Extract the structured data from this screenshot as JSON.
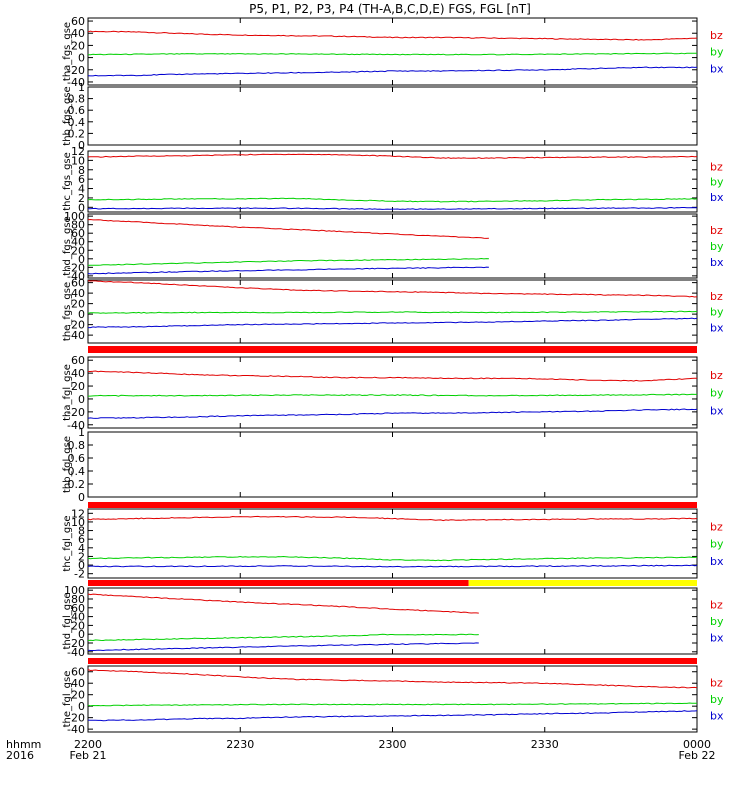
{
  "title": "P5, P1, P2, P3, P4 (TH-A,B,C,D,E) FGS, FGL [nT]",
  "colors": {
    "bz": "#e00000",
    "by": "#00d000",
    "bx": "#0000d0",
    "flag_red": "#ff0000",
    "flag_yellow": "#ffff00"
  },
  "time_axis": {
    "row_label_1": "hhmm",
    "row_label_2": "2016",
    "ticks": [
      {
        "t": 0,
        "label": "2200",
        "sub": "Feb 21"
      },
      {
        "t": 30,
        "label": "2230",
        "sub": ""
      },
      {
        "t": 60,
        "label": "2300",
        "sub": ""
      },
      {
        "t": 90,
        "label": "2330",
        "sub": ""
      },
      {
        "t": 120,
        "label": "0000",
        "sub": "Feb 22"
      }
    ],
    "range_minutes": [
      0,
      120
    ]
  },
  "chart_data": [
    {
      "type": "line",
      "ylabel": "tha_fgs_gse",
      "ylim": [
        -45,
        65
      ],
      "ticks": [
        -40,
        -20,
        0,
        20,
        40,
        60
      ],
      "legend": [
        "bz",
        "by",
        "bx"
      ],
      "series": [
        {
          "name": "bz",
          "x": [
            0,
            10,
            20,
            30,
            40,
            50,
            60,
            70,
            80,
            90,
            100,
            110,
            120
          ],
          "values": [
            43,
            42,
            39,
            37,
            36,
            35,
            33,
            33,
            32,
            31,
            30,
            29,
            32
          ]
        },
        {
          "name": "by",
          "x": [
            0,
            20,
            40,
            60,
            80,
            100,
            120
          ],
          "values": [
            5,
            6,
            6,
            5,
            5,
            6,
            7
          ]
        },
        {
          "name": "bx",
          "x": [
            0,
            10,
            20,
            30,
            40,
            50,
            60,
            70,
            80,
            90,
            100,
            110,
            120
          ],
          "values": [
            -30,
            -29,
            -27,
            -26,
            -25,
            -24,
            -22,
            -22,
            -21,
            -20,
            -18,
            -16,
            -16
          ]
        }
      ]
    },
    {
      "type": "line",
      "ylabel": "thb_fgs_gse",
      "ylim": [
        0,
        1
      ],
      "ticks": [
        0.0,
        0.2,
        0.4,
        0.6,
        0.8,
        1.0
      ],
      "legend": [],
      "series": []
    },
    {
      "type": "line",
      "ylabel": "thc_fgs_gse",
      "ylim": [
        -1,
        12
      ],
      "ticks": [
        0,
        2,
        4,
        6,
        8,
        10,
        12
      ],
      "legend": [
        "bz",
        "by",
        "bx"
      ],
      "series": [
        {
          "name": "bz",
          "x": [
            0,
            10,
            20,
            30,
            40,
            50,
            60,
            70,
            80,
            90,
            100,
            110,
            120
          ],
          "values": [
            10.7,
            10.9,
            11.0,
            11.2,
            11.3,
            11.2,
            10.9,
            10.5,
            10.5,
            10.6,
            10.7,
            10.7,
            10.8
          ]
        },
        {
          "name": "by",
          "x": [
            0,
            10,
            20,
            30,
            40,
            50,
            60,
            70,
            80,
            90,
            100,
            110,
            120
          ],
          "values": [
            1.6,
            1.7,
            1.8,
            1.8,
            1.9,
            1.6,
            1.3,
            1.2,
            1.3,
            1.4,
            1.6,
            1.7,
            1.8
          ]
        },
        {
          "name": "bx",
          "x": [
            0,
            20,
            40,
            60,
            80,
            100,
            120
          ],
          "values": [
            -0.3,
            -0.2,
            -0.2,
            -0.4,
            -0.3,
            -0.2,
            -0.1
          ]
        }
      ]
    },
    {
      "type": "line",
      "ylabel": "thd_fgs_gse",
      "ylim": [
        -45,
        105
      ],
      "ticks": [
        -40,
        -20,
        0,
        20,
        40,
        60,
        80,
        100
      ],
      "legend": [
        "bz",
        "by",
        "bx"
      ],
      "series": [
        {
          "name": "bz",
          "x": [
            0,
            10,
            20,
            30,
            40,
            50,
            60,
            70,
            79
          ],
          "values": [
            92,
            86,
            80,
            74,
            69,
            64,
            58,
            53,
            48
          ]
        },
        {
          "name": "by",
          "x": [
            0,
            20,
            40,
            60,
            79
          ],
          "values": [
            -15,
            -10,
            -5,
            -2,
            0
          ]
        },
        {
          "name": "bx",
          "x": [
            0,
            20,
            40,
            60,
            79
          ],
          "values": [
            -35,
            -30,
            -26,
            -22,
            -20
          ]
        }
      ]
    },
    {
      "type": "line",
      "ylabel": "the_fgs_gse",
      "ylim": [
        -55,
        65
      ],
      "ticks": [
        -40,
        -20,
        0,
        20,
        40,
        60
      ],
      "legend": [
        "bz",
        "by",
        "bx"
      ],
      "series": [
        {
          "name": "bz",
          "x": [
            0,
            10,
            20,
            30,
            40,
            50,
            60,
            70,
            80,
            90,
            100,
            110,
            120
          ],
          "values": [
            63,
            60,
            55,
            50,
            46,
            44,
            43,
            41,
            39,
            38,
            37,
            36,
            33
          ]
        },
        {
          "name": "by",
          "x": [
            0,
            20,
            40,
            60,
            80,
            100,
            120
          ],
          "values": [
            2,
            3,
            3,
            4,
            3,
            4,
            5
          ]
        },
        {
          "name": "bx",
          "x": [
            0,
            10,
            20,
            30,
            40,
            50,
            60,
            70,
            80,
            90,
            100,
            110,
            120
          ],
          "values": [
            -25,
            -24,
            -22,
            -20,
            -19,
            -18,
            -17,
            -16,
            -15,
            -13,
            -12,
            -10,
            -8
          ]
        }
      ]
    },
    {
      "type": "line",
      "ylabel": "tha_fgl_gse",
      "ylim": [
        -45,
        65
      ],
      "ticks": [
        -40,
        -20,
        0,
        20,
        40,
        60
      ],
      "legend": [
        "bz",
        "by",
        "bx"
      ],
      "series": [
        {
          "name": "bz",
          "x": [
            0,
            10,
            20,
            30,
            40,
            50,
            60,
            70,
            80,
            90,
            100,
            110,
            120
          ],
          "values": [
            43,
            41,
            38,
            36,
            35,
            33,
            33,
            32,
            32,
            31,
            29,
            28,
            32
          ]
        },
        {
          "name": "by",
          "x": [
            0,
            20,
            40,
            60,
            80,
            100,
            120
          ],
          "values": [
            5,
            5,
            6,
            6,
            5,
            6,
            7
          ]
        },
        {
          "name": "bx",
          "x": [
            0,
            10,
            20,
            30,
            40,
            50,
            60,
            70,
            80,
            90,
            100,
            110,
            120
          ],
          "values": [
            -30,
            -29,
            -28,
            -26,
            -25,
            -24,
            -22,
            -22,
            -21,
            -20,
            -19,
            -17,
            -16
          ]
        }
      ]
    },
    {
      "type": "line",
      "ylabel": "thb_fgl_gse",
      "ylim": [
        0,
        1
      ],
      "ticks": [
        0.0,
        0.2,
        0.4,
        0.6,
        0.8,
        1.0
      ],
      "legend": [],
      "series": []
    },
    {
      "type": "line",
      "ylabel": "thc_fgl_gse",
      "ylim": [
        -3,
        13
      ],
      "ticks": [
        -2,
        0,
        2,
        4,
        6,
        8,
        10,
        12
      ],
      "legend": [
        "bz",
        "by",
        "bx"
      ],
      "series": [
        {
          "name": "bz",
          "x": [
            0,
            10,
            20,
            30,
            40,
            50,
            60,
            70,
            80,
            90,
            100,
            110,
            120
          ],
          "values": [
            10.6,
            10.8,
            11.0,
            11.2,
            11.2,
            11.1,
            10.8,
            10.4,
            10.5,
            10.6,
            10.7,
            10.7,
            10.8
          ]
        },
        {
          "name": "by",
          "x": [
            0,
            10,
            20,
            30,
            40,
            50,
            60,
            70,
            80,
            90,
            100,
            110,
            120
          ],
          "values": [
            1.5,
            1.7,
            1.8,
            1.9,
            1.9,
            1.6,
            1.2,
            1.1,
            1.3,
            1.5,
            1.6,
            1.7,
            1.8
          ]
        },
        {
          "name": "bx",
          "x": [
            0,
            20,
            40,
            60,
            80,
            100,
            120
          ],
          "values": [
            -0.3,
            -0.3,
            -0.2,
            -0.4,
            -0.3,
            -0.2,
            -0.1
          ]
        }
      ]
    },
    {
      "type": "line",
      "ylabel": "thd_fgl_gse",
      "ylim": [
        -45,
        105
      ],
      "ticks": [
        -40,
        -20,
        0,
        20,
        40,
        60,
        80,
        100
      ],
      "legend": [
        "bz",
        "by",
        "bx"
      ],
      "series": [
        {
          "name": "bz",
          "x": [
            0,
            10,
            20,
            30,
            40,
            50,
            60,
            70,
            77
          ],
          "values": [
            91,
            85,
            79,
            73,
            68,
            63,
            57,
            52,
            48
          ]
        },
        {
          "name": "by",
          "x": [
            0,
            20,
            40,
            55,
            56,
            77
          ],
          "values": [
            -14,
            -10,
            -6,
            -3,
            -1,
            -1
          ]
        },
        {
          "name": "bx",
          "x": [
            0,
            20,
            40,
            60,
            77
          ],
          "values": [
            -37,
            -32,
            -27,
            -23,
            -20
          ]
        }
      ]
    },
    {
      "type": "line",
      "ylabel": "the_fgl_gse",
      "ylim": [
        -45,
        70
      ],
      "ticks": [
        -40,
        -20,
        0,
        20,
        40,
        60
      ],
      "legend": [
        "bz",
        "by",
        "bx"
      ],
      "series": [
        {
          "name": "bz",
          "x": [
            0,
            10,
            20,
            30,
            40,
            50,
            60,
            70,
            80,
            90,
            100,
            110,
            120
          ],
          "values": [
            63,
            60,
            56,
            51,
            47,
            45,
            44,
            42,
            41,
            40,
            37,
            34,
            32
          ]
        },
        {
          "name": "by",
          "x": [
            0,
            20,
            40,
            60,
            80,
            100,
            120
          ],
          "values": [
            1,
            2,
            3,
            3,
            3,
            4,
            5
          ]
        },
        {
          "name": "bx",
          "x": [
            0,
            10,
            20,
            30,
            40,
            50,
            60,
            70,
            80,
            90,
            100,
            110,
            120
          ],
          "values": [
            -25,
            -24,
            -22,
            -21,
            -19,
            -18,
            -17,
            -16,
            -15,
            -13,
            -12,
            -10,
            -8
          ]
        }
      ]
    }
  ],
  "flag_bars": [
    {
      "segments": [
        {
          "from": 0,
          "to": 120,
          "color": "red"
        }
      ]
    },
    {
      "segments": [
        {
          "from": 0,
          "to": 120,
          "color": "red"
        }
      ]
    },
    {
      "segments": [
        {
          "from": 0,
          "to": 75,
          "color": "red"
        },
        {
          "from": 75,
          "to": 120,
          "color": "yellow"
        }
      ]
    },
    {
      "segments": [
        {
          "from": 0,
          "to": 120,
          "color": "red"
        }
      ]
    }
  ]
}
